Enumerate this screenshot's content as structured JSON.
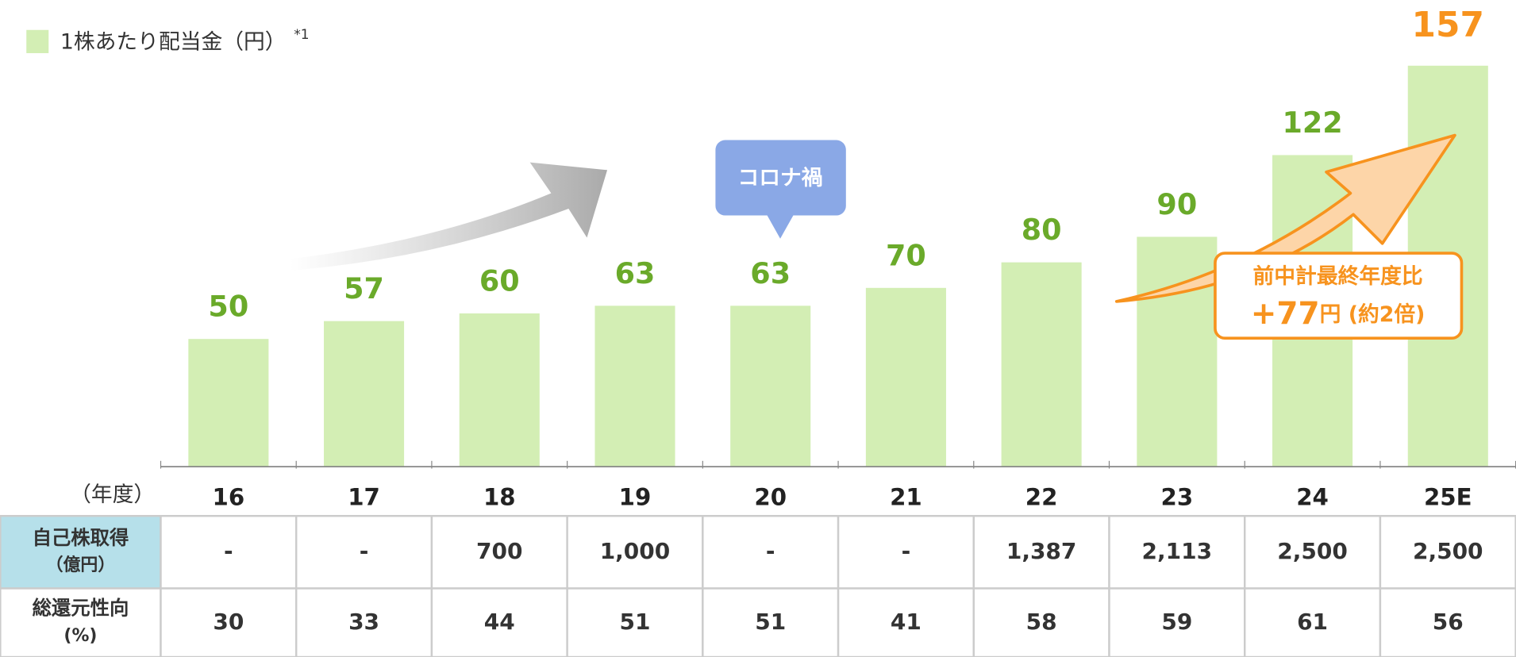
{
  "chart_data": {
    "type": "bar",
    "legend": "1株あたり配当金（円）",
    "legend_note": "*1",
    "color": "#d3eeb4",
    "categories": [
      "16",
      "17",
      "18",
      "19",
      "20",
      "21",
      "22",
      "23",
      "24",
      "25E"
    ],
    "values": [
      50,
      57,
      60,
      63,
      63,
      70,
      80,
      90,
      122,
      157
    ],
    "label_colors": [
      "#6aaa2a",
      "#6aaa2a",
      "#6aaa2a",
      "#6aaa2a",
      "#6aaa2a",
      "#6aaa2a",
      "#6aaa2a",
      "#6aaa2a",
      "#6aaa2a",
      "#f7931e"
    ],
    "x_label": "（年度）",
    "callout": "コロナ禍",
    "annotation": {
      "line1": "前中計最終年度比",
      "amount": "+77",
      "suffix": "円 (約2倍)"
    }
  },
  "table": {
    "rows": [
      {
        "label": [
          "自己株取得",
          "（億円）"
        ],
        "cells": [
          "-",
          "-",
          "700",
          "1,000",
          "-",
          "-",
          "1,387",
          "2,113",
          "2,500",
          "2,500"
        ]
      },
      {
        "label": [
          "総還元性向",
          "(%)"
        ],
        "cells": [
          "30",
          "33",
          "44",
          "51",
          "51",
          "41",
          "58",
          "59",
          "61",
          "56"
        ]
      }
    ]
  }
}
